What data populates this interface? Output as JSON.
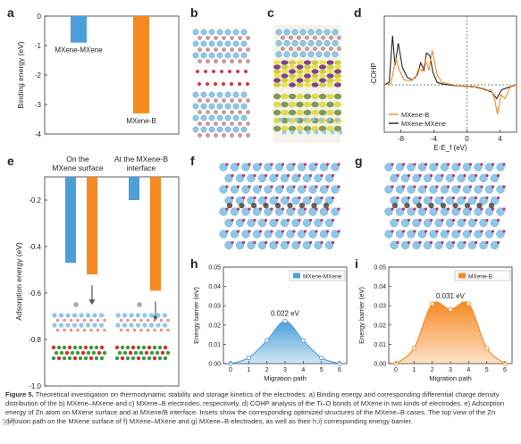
{
  "panels": {
    "a": {
      "label": "a",
      "chart_data": {
        "type": "bar",
        "categories": [
          "MXene-MXene",
          "MXene-B"
        ],
        "values": [
          -0.9,
          -3.3
        ],
        "ylabel": "Binding energy (eV)",
        "ylim": [
          -4,
          0
        ],
        "yticks": [
          "0",
          "-1",
          "-2",
          "-3",
          "-4"
        ],
        "colors": [
          "#4a9fd8",
          "#f58a24"
        ]
      }
    },
    "b": {
      "label": "b"
    },
    "c": {
      "label": "c"
    },
    "d": {
      "label": "d",
      "chart_data": {
        "type": "line",
        "xlabel": "E-E_f (eV)",
        "ylabel": "-COHP",
        "xlim": [
          -10,
          6
        ],
        "xticks": [
          "-8",
          "-4",
          "0",
          "4"
        ],
        "series": [
          {
            "name": "MXene-B",
            "color": "#f58a24",
            "x": [
              -10,
              -9.2,
              -8.6,
              -8.2,
              -7.6,
              -6.8,
              -6.2,
              -5.8,
              -5.4,
              -5.0,
              -4.6,
              -4.2,
              -3.6,
              -3.0,
              -2.2,
              -1.4,
              -0.6,
              0,
              0.6,
              1.2,
              1.8,
              2.4,
              2.9,
              3.3,
              3.7,
              4.1,
              4.6,
              5.2,
              6
            ],
            "y": [
              0,
              0.02,
              0.55,
              0.3,
              0.1,
              0.08,
              0.15,
              0.35,
              0.28,
              0.5,
              0.3,
              0.7,
              0.2,
              0.05,
              0.02,
              -0.01,
              -0.03,
              -0.04,
              -0.02,
              -0.06,
              -0.08,
              -0.12,
              -0.1,
              -0.25,
              -0.6,
              -0.2,
              -0.28,
              -0.05,
              0
            ]
          },
          {
            "name": "MXene-MXene",
            "color": "#222222",
            "x": [
              -10,
              -9.4,
              -9.0,
              -8.7,
              -8.3,
              -7.8,
              -7.2,
              -6.6,
              -6.0,
              -5.6,
              -5.2,
              -4.9,
              -4.5,
              -4.1,
              -3.6,
              -3.0,
              -2.2,
              -1.2,
              0,
              1.0,
              2.0,
              3.0,
              3.6,
              4.2,
              5.0,
              6
            ],
            "y": [
              0,
              0.05,
              1.0,
              0.4,
              0.85,
              0.35,
              0.15,
              0.1,
              0.2,
              0.45,
              0.3,
              0.65,
              0.6,
              0.25,
              0.05,
              0.02,
              0,
              -0.02,
              -0.03,
              -0.04,
              -0.08,
              -0.15,
              -0.28,
              -0.1,
              -0.05,
              0
            ]
          }
        ]
      }
    },
    "e": {
      "label": "e",
      "chart_data": {
        "type": "bar",
        "categories": [
          "On the MXene surface",
          "At the MXene-B interface"
        ],
        "series": [
          {
            "name": "",
            "color": "#4a9fd8",
            "values": [
              -0.47,
              -0.2
            ]
          },
          {
            "name": "",
            "color": "#f58a24",
            "values": [
              -0.52,
              -0.59
            ]
          }
        ],
        "ylabel": "Adsorption energy (eV)",
        "ylim": [
          -1.0,
          -0.1
        ],
        "yticks": [
          "-0.2",
          "-0.4",
          "-0.6",
          "-0.8",
          "-1.0"
        ]
      },
      "group1_line1": "On the",
      "group1_line2": "MXene surface",
      "group2_line1": "At the MXene-B",
      "group2_line2": "interface"
    },
    "f": {
      "label": "f"
    },
    "g": {
      "label": "g"
    },
    "h": {
      "label": "h",
      "chart_data": {
        "type": "area",
        "x": [
          0,
          1,
          2,
          3,
          4,
          5,
          6
        ],
        "values": [
          0,
          0.003,
          0.012,
          0.022,
          0.012,
          0.003,
          0
        ],
        "series_name": "MXene-MXene",
        "annotation": "0.022 eV",
        "xlabel": "Migration path",
        "ylabel": "Energy barrier (eV)",
        "ylim": [
          0,
          0.05
        ],
        "yticks": [
          "0.00",
          "0.01",
          "0.02",
          "0.03",
          "0.04",
          "0.05"
        ],
        "xticks": [
          "0",
          "1",
          "2",
          "3",
          "4",
          "5",
          "6"
        ],
        "color": "#4a9fd8"
      }
    },
    "i": {
      "label": "i",
      "chart_data": {
        "type": "area",
        "x": [
          0,
          1,
          2,
          3,
          4,
          5,
          6
        ],
        "values": [
          0,
          0.008,
          0.031,
          0.028,
          0.031,
          0.008,
          0
        ],
        "series_name": "MXene-B",
        "annotation": "0.031 eV",
        "xlabel": "Migration path",
        "ylabel": "Energy barrier (eV)",
        "ylim": [
          0,
          0.05
        ],
        "yticks": [
          "0.00",
          "0.01",
          "0.02",
          "0.03",
          "0.04",
          "0.05"
        ],
        "xticks": [
          "0",
          "1",
          "2",
          "3",
          "4",
          "5",
          "6"
        ],
        "color": "#f58a24"
      }
    }
  },
  "caption": {
    "bold": "Figure 5.",
    "text": "Theoretical investigation on thermodynamic stability and storage kinetics of the electrodes. a) Binding energy and corresponding differential charge density distribution of the b) MXene–MXene and c) MXene–B electrodes, respectively. d) COHP analysis of the Ti–O bonds of MXene in two kinds of electrodes. e) Adsorption energy of Zn atom on MXene surface and at MXene/B interface. Insets show the corresponding optimized structures of the MXene–B cases. The top view of the Zn diffusion path on the MXene surface of f) MXene–MXene and g) MXene–B electrodes, as well as their h,i) corresponding energy barrier."
  },
  "watermark": "知乎"
}
